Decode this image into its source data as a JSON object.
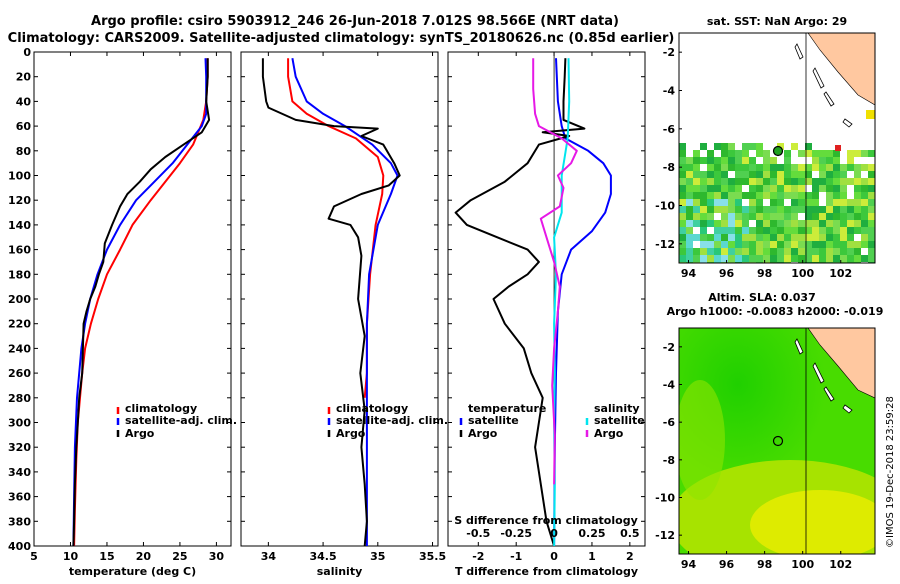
{
  "title_line1": "Argo profile: csiro 5903912_246 26-Jun-2018 7.012S 98.566E (NRT data)",
  "title_line2": "Climatology: CARS2009. Satellite-adjusted climatology: synTS_20180626.nc (0.85d earlier)",
  "sst_map_title": "sat. SST: NaN Argo: 29",
  "sla_title_1": "Altim. SLA: 0.037",
  "sla_title_2": "Argo h1000: -0.0083 h2000: -0.019",
  "watermark": "©IMOS 19-Dec-2018 23:59:28",
  "colors": {
    "clim": "#ff0000",
    "sat": "#0000ff",
    "argo": "#000000",
    "sat_s": "#00e5ee",
    "clim_s": "#e619e6"
  },
  "chart_data": [
    {
      "type": "line",
      "id": "temperature",
      "xlabel": "temperature (deg C)",
      "ylabel": "",
      "xlim": [
        5,
        32
      ],
      "ylim": [
        0,
        400
      ],
      "xticks": [
        5,
        10,
        15,
        20,
        25,
        30
      ],
      "yticks": [
        0,
        20,
        40,
        60,
        80,
        100,
        120,
        140,
        160,
        180,
        200,
        220,
        240,
        260,
        280,
        300,
        320,
        340,
        360,
        380,
        400
      ],
      "legend": [
        "climatology",
        "satellite-adj. clim.",
        "Argo"
      ],
      "series": [
        {
          "name": "climatology",
          "color": "#ff0000",
          "x": [
            28.8,
            28.8,
            28.6,
            28.2,
            26.8,
            25.0,
            23.0,
            21.0,
            18.5,
            16.8,
            15.0,
            13.8,
            12.8,
            12.0,
            11.6,
            11.3,
            11.0,
            10.8,
            10.6,
            10.5
          ],
          "y": [
            5,
            20,
            40,
            55,
            75,
            90,
            105,
            120,
            140,
            160,
            180,
            200,
            220,
            240,
            260,
            280,
            300,
            330,
            370,
            400
          ]
        },
        {
          "name": "satellite-adj. clim.",
          "color": "#0000ff",
          "x": [
            28.5,
            28.6,
            28.6,
            28.6,
            28.0,
            26.0,
            24.0,
            21.5,
            19.0,
            16.8,
            15.0,
            13.7,
            12.7,
            12.0,
            11.5,
            11.2,
            10.9,
            10.6,
            10.5,
            10.4
          ],
          "y": [
            5,
            20,
            40,
            50,
            60,
            75,
            90,
            105,
            120,
            140,
            160,
            180,
            200,
            220,
            240,
            260,
            280,
            320,
            360,
            400
          ]
        },
        {
          "name": "Argo",
          "color": "#000000",
          "x": [
            28.8,
            28.8,
            28.6,
            29.0,
            28.0,
            25.5,
            23.0,
            21.0,
            19.5,
            17.8,
            16.8,
            15.7,
            14.7,
            14.5,
            13.9,
            13.4,
            12.7,
            12.2,
            11.8,
            11.7,
            11.6,
            11.2,
            11.0,
            10.8,
            10.6,
            10.5,
            10.4
          ],
          "y": [
            5,
            20,
            40,
            55,
            65,
            75,
            85,
            95,
            105,
            115,
            125,
            140,
            155,
            170,
            180,
            190,
            200,
            210,
            220,
            240,
            260,
            280,
            300,
            320,
            350,
            380,
            400
          ]
        }
      ]
    },
    {
      "type": "line",
      "id": "salinity",
      "xlabel": "salinity",
      "xlim": [
        33.75,
        35.55
      ],
      "ylim": [
        0,
        400
      ],
      "xticks": [
        34,
        34.5,
        35,
        35.5
      ],
      "legend": [
        "climatology",
        "satellite-adj. clim.",
        "Argo"
      ],
      "series": [
        {
          "name": "climatology",
          "color": "#ff0000",
          "x": [
            34.18,
            34.18,
            34.22,
            34.35,
            34.55,
            34.8,
            35.0,
            35.05,
            35.04,
            34.98,
            34.93,
            34.9,
            34.9,
            34.88
          ],
          "y": [
            5,
            20,
            40,
            50,
            60,
            70,
            85,
            100,
            115,
            140,
            180,
            220,
            260,
            280
          ]
        },
        {
          "name": "satellite-adj. clim.",
          "color": "#0000ff",
          "x": [
            34.22,
            34.25,
            34.35,
            34.5,
            34.7,
            34.95,
            35.12,
            35.18,
            35.12,
            35.0,
            34.92,
            34.9,
            34.9,
            34.9,
            34.9,
            34.9
          ],
          "y": [
            5,
            20,
            40,
            50,
            60,
            75,
            90,
            100,
            115,
            140,
            180,
            220,
            260,
            300,
            340,
            400
          ]
        },
        {
          "name": "Argo",
          "color": "#000000",
          "x": [
            33.95,
            33.95,
            33.98,
            34.0,
            34.25,
            34.6,
            35.0,
            34.85,
            35.05,
            35.15,
            35.2,
            35.1,
            34.85,
            34.6,
            34.55,
            34.75,
            34.82,
            34.85,
            34.82,
            34.88,
            34.84,
            34.88,
            34.85,
            34.88,
            34.9,
            34.88
          ],
          "y": [
            5,
            20,
            40,
            45,
            55,
            60,
            62,
            68,
            75,
            90,
            100,
            108,
            115,
            125,
            135,
            140,
            150,
            165,
            200,
            230,
            260,
            290,
            320,
            350,
            380,
            400
          ]
        }
      ]
    },
    {
      "type": "line",
      "id": "difference",
      "xlabel": "T difference from climatology",
      "xlabel_top": "S difference from climatology",
      "xlim": [
        -2.8,
        2.4
      ],
      "ylim": [
        0,
        400
      ],
      "xticks": [
        -2,
        -1,
        0,
        1,
        2
      ],
      "xticks_top": [
        -0.5,
        -0.25,
        0,
        0.25,
        0.5
      ],
      "legend_left": [
        "temperature",
        "satellite",
        "Argo"
      ],
      "legend_right": [
        "salinity",
        "satellite",
        "Argo"
      ],
      "series": [
        {
          "name": "T satellite",
          "color": "#0000ff",
          "x": [
            0.05,
            0.1,
            0.2,
            0.3,
            0.9,
            1.3,
            1.5,
            1.5,
            1.35,
            1.0,
            0.45,
            0.2,
            0.1,
            0.05,
            0.02,
            0.0
          ],
          "y": [
            5,
            40,
            60,
            70,
            80,
            90,
            100,
            115,
            130,
            145,
            160,
            180,
            210,
            260,
            320,
            400
          ]
        },
        {
          "name": "T Argo",
          "color": "#000000",
          "x": [
            0.3,
            0.28,
            0.25,
            0.25,
            0.8,
            -0.3,
            0.4,
            -0.4,
            -0.7,
            -1.3,
            -2.2,
            -2.6,
            -2.3,
            -1.5,
            -0.7,
            -0.4,
            -0.7,
            -1.2,
            -1.6,
            -1.3,
            -0.8,
            -0.6,
            -0.3,
            -0.4,
            -0.5,
            -0.4,
            -0.2,
            0.0
          ],
          "y": [
            5,
            20,
            40,
            55,
            62,
            65,
            68,
            75,
            90,
            105,
            120,
            130,
            140,
            150,
            160,
            170,
            180,
            190,
            200,
            220,
            240,
            260,
            280,
            300,
            320,
            340,
            380,
            400
          ]
        },
        {
          "name": "S satellite",
          "color": "#00e5ee",
          "x": [
            0.38,
            0.4,
            0.36,
            0.2,
            0.2,
            0.0,
            0.05,
            0.0,
            0.02,
            0.0,
            0.02,
            0.0
          ],
          "y": [
            5,
            40,
            70,
            100,
            130,
            150,
            180,
            220,
            260,
            300,
            350,
            400
          ]
        },
        {
          "name": "S Argo",
          "color": "#e619e6",
          "x": [
            -0.55,
            -0.55,
            -0.5,
            -0.4,
            0.2,
            0.6,
            0.45,
            0.1,
            0.25,
            0.15,
            -0.35,
            -0.2,
            0.0,
            0.15,
            0.1,
            0.0,
            -0.05,
            0.02,
            0.0
          ],
          "y": [
            5,
            30,
            50,
            60,
            70,
            80,
            90,
            100,
            110,
            125,
            135,
            150,
            170,
            190,
            210,
            240,
            270,
            310,
            350
          ]
        }
      ]
    },
    {
      "type": "heatmap",
      "id": "sst_map",
      "title": "sat. SST: NaN Argo: 29",
      "xlim": [
        93.5,
        103.8
      ],
      "ylim": [
        -13,
        -1
      ],
      "xticks": [
        94,
        96,
        98,
        100,
        102
      ],
      "yticks": [
        -2,
        -4,
        -6,
        -8,
        -10,
        -12
      ],
      "argo_position": [
        98.566,
        -7.012
      ]
    },
    {
      "type": "heatmap",
      "id": "sla_map",
      "title": "Altim. SLA: 0.037",
      "xlim": [
        93.5,
        103.8
      ],
      "ylim": [
        -13,
        -1
      ],
      "xticks": [
        94,
        96,
        98,
        100,
        102
      ],
      "yticks": [
        -2,
        -4,
        -6,
        -8,
        -10,
        -12
      ],
      "argo_position": [
        98.566,
        -7.012
      ]
    }
  ]
}
